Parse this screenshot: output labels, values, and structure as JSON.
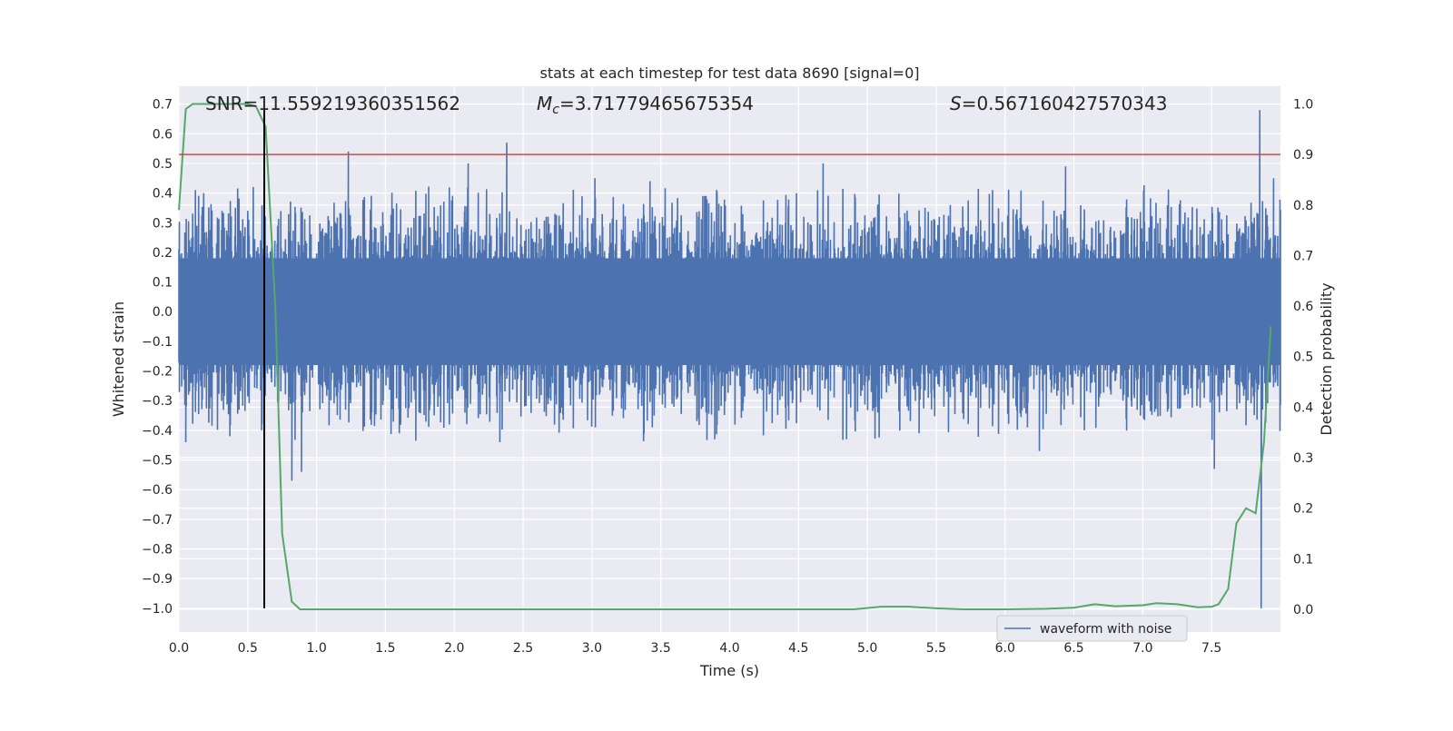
{
  "chart_data": {
    "type": "line",
    "title": "stats at each timestep for test data 8690 [signal=0]",
    "xlabel": "Time (s)",
    "ylabel": "Whitened strain",
    "y2label": "Detection probability",
    "xlim": [
      0.0,
      8.0
    ],
    "ylim": [
      -1.08,
      0.76
    ],
    "y2lim": [
      -0.045,
      1.035
    ],
    "x_ticks": [
      0.0,
      0.5,
      1.0,
      1.5,
      2.0,
      2.5,
      3.0,
      3.5,
      4.0,
      4.5,
      5.0,
      5.5,
      6.0,
      6.5,
      7.0,
      7.5
    ],
    "x_tick_labels": [
      "0.0",
      "0.5",
      "1.0",
      "1.5",
      "2.0",
      "2.5",
      "3.0",
      "3.5",
      "4.0",
      "4.5",
      "5.0",
      "5.5",
      "6.0",
      "6.5",
      "7.0",
      "7.5"
    ],
    "y_ticks": [
      0.7,
      0.6,
      0.5,
      0.4,
      0.3,
      0.2,
      0.1,
      0.0,
      -0.1,
      -0.2,
      -0.3,
      -0.4,
      -0.5,
      -0.6,
      -0.7,
      -0.8,
      -0.9,
      -1.0
    ],
    "y_tick_labels": [
      "0.7",
      "0.6",
      "0.5",
      "0.4",
      "0.3",
      "0.2",
      "0.1",
      "0.0",
      "−0.1",
      "−0.2",
      "−0.3",
      "−0.4",
      "−0.5",
      "−0.6",
      "−0.7",
      "−0.8",
      "−0.9",
      "−1.0"
    ],
    "y2_ticks": [
      1.0,
      0.9,
      0.8,
      0.7,
      0.6,
      0.5,
      0.4,
      0.3,
      0.2,
      0.1,
      0.0
    ],
    "y2_tick_labels": [
      "1.0",
      "0.9",
      "0.8",
      "0.7",
      "0.6",
      "0.5",
      "0.4",
      "0.3",
      "0.2",
      "0.1",
      "0.0"
    ],
    "grid": true,
    "legend": {
      "placement": "lower-right",
      "entries": [
        "waveform with noise"
      ]
    },
    "annotations": {
      "snr": "SNR=11.559219360351562",
      "mc_symbol": "M",
      "mc_sub": "c",
      "mc_value": "=3.71779465675354",
      "s_symbol": "S",
      "s_value": "=0.567160427570343"
    },
    "threshold_line": {
      "axis": "y2",
      "value": 0.9,
      "color": "#c44e52"
    },
    "marker_line": {
      "x": 0.62,
      "y_from": -1.0,
      "y_to": 0.68,
      "color": "#000000"
    },
    "waveform": {
      "name": "waveform with noise",
      "color": "#4c72b0",
      "x_start": 0.0,
      "x_end": 8.0,
      "core_amplitude": 0.18,
      "spikes": [
        {
          "x": 0.05,
          "y": -0.44
        },
        {
          "x": 0.18,
          "y": 0.4
        },
        {
          "x": 0.37,
          "y": -0.42
        },
        {
          "x": 0.41,
          "y": 0.35
        },
        {
          "x": 0.54,
          "y": 0.42
        },
        {
          "x": 0.6,
          "y": -0.4
        },
        {
          "x": 0.82,
          "y": -0.57
        },
        {
          "x": 0.89,
          "y": -0.54
        },
        {
          "x": 1.23,
          "y": 0.54
        },
        {
          "x": 1.6,
          "y": -0.41
        },
        {
          "x": 2.1,
          "y": 0.5
        },
        {
          "x": 2.33,
          "y": -0.44
        },
        {
          "x": 2.38,
          "y": 0.57
        },
        {
          "x": 3.02,
          "y": 0.45
        },
        {
          "x": 3.42,
          "y": 0.44
        },
        {
          "x": 3.89,
          "y": -0.43
        },
        {
          "x": 4.68,
          "y": 0.5
        },
        {
          "x": 4.85,
          "y": -0.43
        },
        {
          "x": 6.25,
          "y": -0.47
        },
        {
          "x": 6.44,
          "y": 0.49
        },
        {
          "x": 7.52,
          "y": -0.53
        },
        {
          "x": 7.85,
          "y": 0.68
        },
        {
          "x": 7.86,
          "y": -1.0
        },
        {
          "x": 7.95,
          "y": 0.45
        }
      ]
    },
    "probability": {
      "name": "Detection probability",
      "color": "#55a868",
      "x": [
        0.0,
        0.05,
        0.1,
        0.2,
        0.3,
        0.4,
        0.5,
        0.56,
        0.63,
        0.7,
        0.75,
        0.82,
        0.88,
        1.0,
        1.5,
        2.0,
        2.5,
        3.0,
        3.5,
        4.0,
        4.5,
        4.9,
        5.1,
        5.3,
        5.5,
        5.7,
        6.0,
        6.3,
        6.5,
        6.65,
        6.8,
        7.0,
        7.1,
        7.25,
        7.4,
        7.5,
        7.55,
        7.62,
        7.68,
        7.75,
        7.82,
        7.88,
        7.93
      ],
      "y": [
        0.79,
        0.99,
        1.0,
        1.0,
        1.0,
        1.0,
        1.0,
        0.995,
        0.955,
        0.6,
        0.15,
        0.015,
        0.0,
        0.0,
        0.0,
        0.0,
        0.0,
        0.0,
        0.0,
        0.0,
        0.0,
        0.0,
        0.005,
        0.005,
        0.002,
        0.0,
        0.0,
        0.001,
        0.003,
        0.01,
        0.006,
        0.008,
        0.012,
        0.01,
        0.004,
        0.005,
        0.01,
        0.04,
        0.17,
        0.2,
        0.19,
        0.33,
        0.56
      ]
    }
  }
}
